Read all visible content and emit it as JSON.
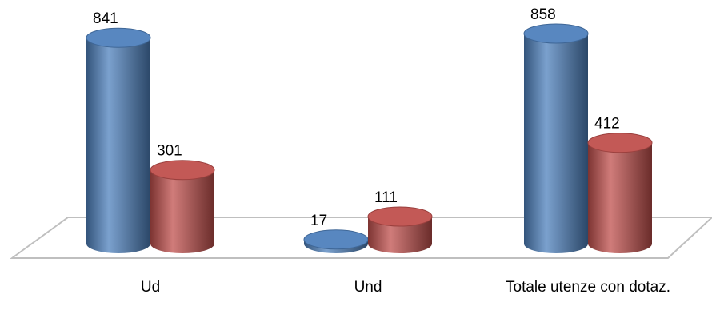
{
  "chart_data": {
    "type": "bar3d",
    "categories": [
      "Ud",
      "Und",
      "Totale utenze con dotaz."
    ],
    "series": [
      {
        "color": "#4f81bd",
        "values": [
          841,
          17,
          858
        ]
      },
      {
        "color": "#c0504d",
        "values": [
          301,
          111,
          412
        ]
      }
    ]
  }
}
